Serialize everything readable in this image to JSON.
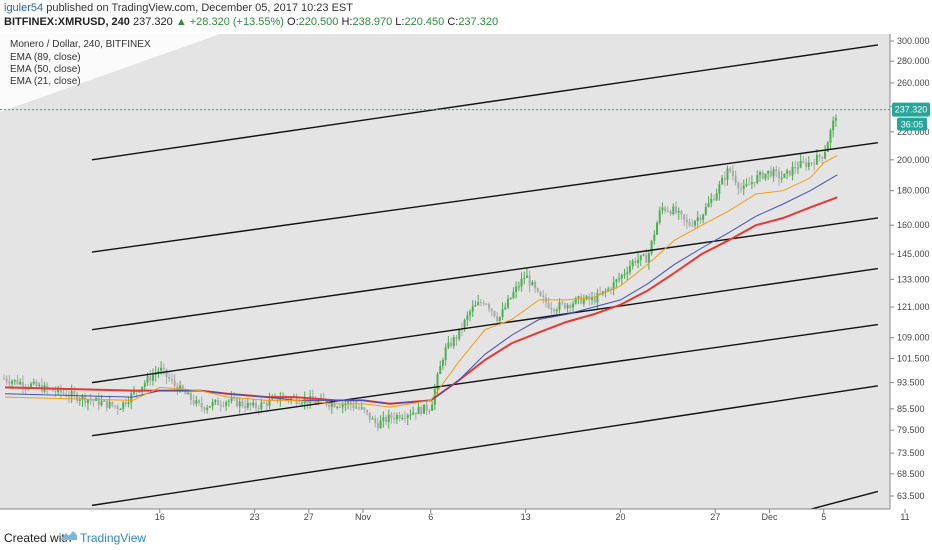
{
  "header": {
    "user": "iguler54",
    "published_text": "published on TradingView.com, December 05, 2017 10:23 EST",
    "symbol": "BITFINEX:XMRUSD, 240",
    "last": "237.320",
    "change": "▲ +28.320 (+13.55%)",
    "open_label": "O:",
    "open_value": "220.500",
    "high_label": "H:",
    "high_value": "238.970",
    "low_label": "L:",
    "low_value": "220.450",
    "close_label": "C:",
    "close_value": "237.320"
  },
  "legend": {
    "title": "Monero / Dollar, 240, BITFINEX",
    "items": [
      "EMA (89, close)",
      "EMA (50, close)",
      "EMA (21, close)"
    ]
  },
  "footer": {
    "created_with": "Created with",
    "brand": "TradingView"
  },
  "colors": {
    "ema89": "#e53935",
    "ema50": "#3f51b5",
    "ema21": "#f39c12",
    "candle_up": "#4caf50",
    "candle_down": "#a9a9a9",
    "channel": "#111111",
    "price_label": "#26a69a",
    "plot_bg": "#e4e4e4"
  },
  "chart_data": {
    "type": "line",
    "price_axis": {
      "scale": "log",
      "ticks": [
        63.5,
        68.5,
        73.5,
        79.5,
        85.5,
        93.5,
        101.5,
        109.0,
        121.0,
        133.0,
        145.0,
        160.0,
        180.0,
        200.0,
        220.0,
        240.0,
        260.0,
        280.0,
        300.0
      ],
      "tick_labels": [
        "63.500",
        "68.500",
        "73.500",
        "79.500",
        "85.500",
        "93.500",
        "101.500",
        "109.000",
        "121.000",
        "133.000",
        "145.000",
        "160.000",
        "180.000",
        "200.000",
        "220.000",
        "240.000",
        "260.000",
        "280.000",
        "300.000"
      ]
    },
    "time_axis": {
      "range_days": [
        0,
        58
      ],
      "ticks": [
        {
          "label": "16",
          "day": 5
        },
        {
          "label": "23",
          "day": 12
        },
        {
          "label": "27",
          "day": 16
        },
        {
          "label": "Nov",
          "day": 20
        },
        {
          "label": "6",
          "day": 25
        },
        {
          "label": "13",
          "day": 32
        },
        {
          "label": "20",
          "day": 39
        },
        {
          "label": "27",
          "day": 46
        },
        {
          "label": "Dec",
          "day": 50
        },
        {
          "label": "5",
          "day": 54
        },
        {
          "label": "11",
          "day": 60
        }
      ]
    },
    "last_price": {
      "value": 237.32,
      "label": "237.320",
      "countdown": "36:05"
    },
    "ema21": [
      [
        0,
        89
      ],
      [
        3,
        88
      ],
      [
        5,
        92
      ],
      [
        8,
        91
      ],
      [
        10,
        89
      ],
      [
        13,
        88
      ],
      [
        15,
        88
      ],
      [
        18,
        87
      ],
      [
        20,
        87
      ],
      [
        22,
        86
      ],
      [
        25,
        88
      ],
      [
        27,
        100
      ],
      [
        29,
        112
      ],
      [
        31,
        116
      ],
      [
        33,
        124
      ],
      [
        35,
        124
      ],
      [
        37,
        125
      ],
      [
        39,
        130
      ],
      [
        41,
        140
      ],
      [
        43,
        152
      ],
      [
        45,
        160
      ],
      [
        47,
        168
      ],
      [
        49,
        178
      ],
      [
        51,
        180
      ],
      [
        53,
        188
      ],
      [
        54,
        198
      ],
      [
        55,
        203
      ]
    ],
    "ema50": [
      [
        0,
        90
      ],
      [
        3,
        89
      ],
      [
        5,
        91
      ],
      [
        8,
        91
      ],
      [
        10,
        90
      ],
      [
        13,
        89
      ],
      [
        15,
        88
      ],
      [
        18,
        88
      ],
      [
        20,
        88
      ],
      [
        22,
        87
      ],
      [
        25,
        88
      ],
      [
        27,
        94
      ],
      [
        29,
        103
      ],
      [
        31,
        110
      ],
      [
        33,
        116
      ],
      [
        35,
        118
      ],
      [
        37,
        121
      ],
      [
        39,
        124
      ],
      [
        41,
        131
      ],
      [
        43,
        140
      ],
      [
        45,
        148
      ],
      [
        47,
        156
      ],
      [
        49,
        165
      ],
      [
        51,
        172
      ],
      [
        53,
        180
      ],
      [
        55,
        190
      ]
    ],
    "ema89": [
      [
        0,
        92
      ],
      [
        3,
        91
      ],
      [
        5,
        91
      ],
      [
        8,
        91
      ],
      [
        10,
        90
      ],
      [
        13,
        89
      ],
      [
        15,
        89
      ],
      [
        18,
        88
      ],
      [
        20,
        88
      ],
      [
        22,
        87
      ],
      [
        25,
        88
      ],
      [
        27,
        94
      ],
      [
        29,
        101
      ],
      [
        31,
        107
      ],
      [
        33,
        111
      ],
      [
        35,
        115
      ],
      [
        37,
        118
      ],
      [
        39,
        122
      ],
      [
        41,
        128
      ],
      [
        43,
        136
      ],
      [
        45,
        145
      ],
      [
        47,
        152
      ],
      [
        49,
        160
      ],
      [
        51,
        164
      ],
      [
        53,
        170
      ],
      [
        55,
        176
      ]
    ],
    "channel_lines": [
      {
        "start_day": 0,
        "start": 200.0,
        "end_day": 58,
        "end": 296.0
      },
      {
        "start_day": 0,
        "start": 146.0,
        "end_day": 58,
        "end": 212.0
      },
      {
        "start_day": 0,
        "start": 112.0,
        "end_day": 58,
        "end": 164.0
      },
      {
        "start_day": 0,
        "start": 93.5,
        "end_day": 58,
        "end": 138.0
      },
      {
        "start_day": 0,
        "start": 78.0,
        "end_day": 58,
        "end": 114.0
      },
      {
        "start_day": 0,
        "start": 61.5,
        "end_day": 58,
        "end": 92.5
      },
      {
        "start_day": 50,
        "start": 58.5,
        "end_day": 58,
        "end": 64.5
      }
    ],
    "price_path": [
      [
        0,
        88
      ],
      [
        2,
        86
      ],
      [
        4,
        94
      ],
      [
        5,
        98
      ],
      [
        6,
        93
      ],
      [
        8,
        86
      ],
      [
        10,
        88
      ],
      [
        12,
        86
      ],
      [
        14,
        89
      ],
      [
        16,
        88
      ],
      [
        18,
        87
      ],
      [
        19,
        87
      ],
      [
        20,
        85
      ],
      [
        21,
        81
      ],
      [
        22,
        83
      ],
      [
        24,
        85
      ],
      [
        25,
        86
      ],
      [
        25.5,
        95
      ],
      [
        26,
        104
      ],
      [
        27,
        110
      ],
      [
        28,
        120
      ],
      [
        29,
        124
      ],
      [
        30,
        116
      ],
      [
        31,
        126
      ],
      [
        32,
        135
      ],
      [
        33,
        125
      ],
      [
        34,
        121
      ],
      [
        35,
        122
      ],
      [
        36,
        124
      ],
      [
        37,
        124
      ],
      [
        38,
        128
      ],
      [
        39,
        134
      ],
      [
        40,
        142
      ],
      [
        41,
        143
      ],
      [
        42,
        170
      ],
      [
        43,
        168
      ],
      [
        44,
        160
      ],
      [
        45,
        166
      ],
      [
        46,
        178
      ],
      [
        47,
        194
      ],
      [
        48,
        180
      ],
      [
        49,
        188
      ],
      [
        50,
        192
      ],
      [
        51,
        188
      ],
      [
        52,
        196
      ],
      [
        53,
        198
      ],
      [
        54,
        204
      ],
      [
        54.5,
        220
      ],
      [
        55,
        237
      ]
    ]
  }
}
